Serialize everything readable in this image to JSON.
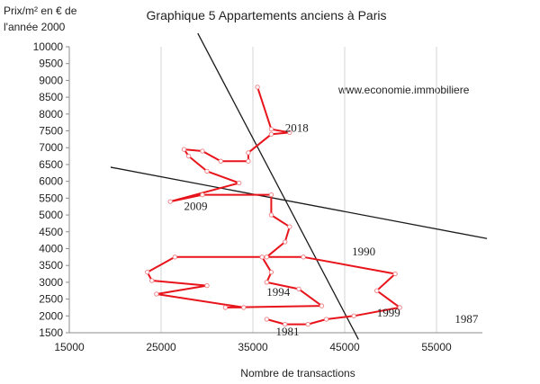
{
  "chart_data": {
    "type": "line",
    "title": "Graphique 5 Appartements anciens à Paris",
    "ylabel_line1": "Prix/m²  en  € de",
    "ylabel_line2": "l'année 2000",
    "xlabel": "Nombre de transactions",
    "watermark": "www.economie.immobiliere",
    "xlim": [
      15000,
      60000
    ],
    "ylim": [
      1500,
      10000
    ],
    "x_ticks": [
      15000,
      25000,
      35000,
      45000,
      55000
    ],
    "x_tick_labels": [
      "15000",
      "25000",
      "35000",
      "45000",
      "55000"
    ],
    "y_ticks": [
      1500,
      2000,
      2500,
      3000,
      3500,
      4000,
      4500,
      5000,
      5500,
      6000,
      6500,
      7000,
      7500,
      8000,
      8500,
      9000,
      9500,
      10000
    ],
    "y_tick_labels": [
      "1500",
      "2000",
      "2500",
      "3000",
      "3500",
      "4000",
      "4500",
      "5000",
      "5500",
      "6000",
      "6500",
      "7000",
      "7500",
      "8000",
      "8500",
      "9000",
      "9500",
      "10000"
    ],
    "grid": "vertical",
    "series": [
      {
        "color": "#e8141b",
        "points": [
          [
            36500,
            1900
          ],
          [
            38500,
            1750
          ],
          [
            41000,
            1750
          ],
          [
            43000,
            1900
          ],
          [
            46000,
            2000
          ],
          [
            51000,
            2250
          ],
          [
            48500,
            2750
          ],
          [
            50500,
            3250
          ],
          [
            40500,
            3750
          ],
          [
            36000,
            3750
          ],
          [
            37000,
            3300
          ],
          [
            36500,
            3000
          ],
          [
            40000,
            2800
          ],
          [
            42500,
            2300
          ],
          [
            32000,
            2250
          ],
          [
            34000,
            2250
          ],
          [
            24500,
            2650
          ],
          [
            30000,
            2900
          ],
          [
            24000,
            3050
          ],
          [
            23500,
            3300
          ],
          [
            26500,
            3750
          ],
          [
            36500,
            3750
          ],
          [
            38500,
            4200
          ],
          [
            39000,
            4650
          ],
          [
            37000,
            5000
          ],
          [
            37000,
            5600
          ],
          [
            29500,
            5600
          ],
          [
            26000,
            5400
          ],
          [
            33500,
            5950
          ],
          [
            30000,
            6300
          ],
          [
            28000,
            6750
          ],
          [
            27500,
            6950
          ],
          [
            29500,
            6900
          ],
          [
            31500,
            6600
          ],
          [
            34500,
            6600
          ],
          [
            34500,
            6850
          ],
          [
            37000,
            7400
          ],
          [
            39000,
            7450
          ],
          [
            37000,
            7550
          ],
          [
            35500,
            8800
          ]
        ]
      }
    ],
    "trend_lines": [
      {
        "color": "#1a1a1a",
        "from": [
          29000,
          10400
        ],
        "to": [
          46500,
          1300
        ]
      },
      {
        "color": "#1a1a1a",
        "from": [
          19500,
          6420
        ],
        "to": [
          60500,
          4300
        ]
      }
    ],
    "annotations": [
      {
        "text": "2018",
        "x": 38500,
        "y": 7480
      },
      {
        "text": "2009",
        "x": 27500,
        "y": 5150
      },
      {
        "text": "1990",
        "x": 45800,
        "y": 3800
      },
      {
        "text": "1994",
        "x": 36500,
        "y": 2600
      },
      {
        "text": "1999",
        "x": 48500,
        "y": 1980
      },
      {
        "text": "1987",
        "x": 57000,
        "y": 1800
      },
      {
        "text": "1981",
        "x": 37500,
        "y": 1420
      }
    ]
  }
}
